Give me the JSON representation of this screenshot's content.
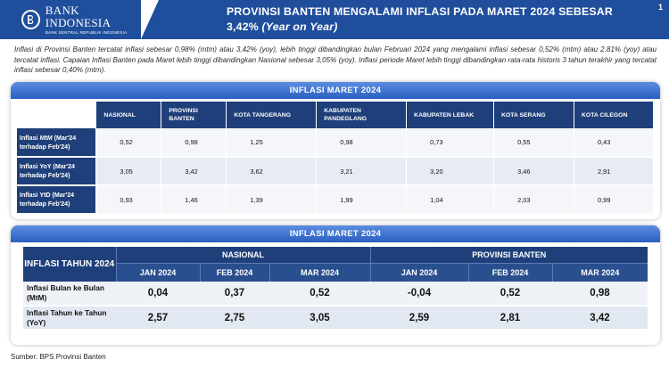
{
  "header": {
    "logo_name": "BANK INDONESIA",
    "logo_sub": "BANK SENTRAL REPUBLIK INDONESIA",
    "title_line1": "PROVINSI BANTEN MENGALAMI INFLASI PADA MARET 2024 SEBESAR",
    "title_line2_value": "3,42%",
    "title_line2_period": "(Year on Year)",
    "page_number": "1",
    "brand_color": "#1f4e9c"
  },
  "description": "Inflasi di Provinsi Banten tercatat inflasi sebesar 0,98% (mtm) atau 3,42% (yoy), lebih tinggi dibandingkan bulan Februari 2024 yang mengalami inflasi sebesar 0,52% (mtm) atau 2,81% (yoy) atau tercatat inflasi. Capaian Inflasi Banten pada Maret lebih tinggi dibandingkan Nasional sebesar 3,05% (yoy). Inflasi periode Maret lebih tinggi dibandingkan rata-rata historis 3 tahun terakhir yang tercatat inflasi sebesar 0,40% (mtm).",
  "table1": {
    "title": "INFLASI MARET 2024",
    "columns": [
      "NASIONAL",
      "PROVINSI BANTEN",
      "KOTA TANGERANG",
      "KABUPATEN PANDEGLANG",
      "KABUPATEN LEBAK",
      "KOTA SERANG",
      "KOTA CILEGON"
    ],
    "rows": [
      {
        "label_pre": "Inflasi ",
        "label_em": "MtM",
        "label_post": " (Mar'24 terhadap Feb'24)",
        "values": [
          "0,52",
          "0,98",
          "1,25",
          "0,98",
          "0,73",
          "0,55",
          "0,43"
        ]
      },
      {
        "label_pre": "Inflasi YoY (Mar'24 terhadap Feb'24)",
        "label_em": "",
        "label_post": "",
        "values": [
          "3,05",
          "3,42",
          "3,62",
          "3,21",
          "3,20",
          "3,46",
          "2,91"
        ]
      },
      {
        "label_pre": "Inflasi YtD (Mar'24 terhadap Feb'24)",
        "label_em": "",
        "label_post": "",
        "values": [
          "0,93",
          "1,46",
          "1,39",
          "1,99",
          "1,04",
          "2,03",
          "0,99"
        ]
      }
    ]
  },
  "table2": {
    "title": "INFLASI MARET 2024",
    "corner": "INFLASI TAHUN 2024",
    "groups": [
      "NASIONAL",
      "PROVINSI BANTEN"
    ],
    "months": [
      "JAN 2024",
      "FEB 2024",
      "MAR 2024",
      "JAN 2024",
      "FEB 2024",
      "MAR 2024"
    ],
    "rows": [
      {
        "label": "Inflasi Bulan ke Bulan (MtM)",
        "values": [
          "0,04",
          "0,37",
          "0,52",
          "-0,04",
          "0,52",
          "0,98"
        ]
      },
      {
        "label": "Inflasi Tahun ke Tahun (YoY)",
        "values": [
          "2,57",
          "2,75",
          "3,05",
          "2,59",
          "2,81",
          "3,42"
        ]
      }
    ]
  },
  "source": "Sumber: BPS Provinsi Banten"
}
